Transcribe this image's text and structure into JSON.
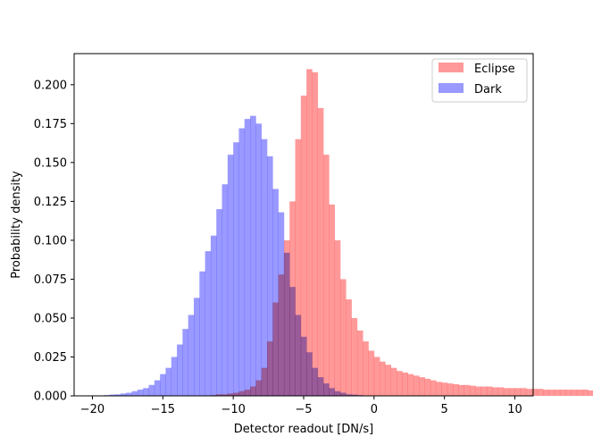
{
  "chart_data": {
    "type": "bar",
    "histogram": true,
    "xlabel": "Detector readout [DN/s]",
    "ylabel": "Probability density",
    "xlim": [
      -21.3,
      11.3
    ],
    "ylim": [
      0,
      0.22
    ],
    "xticks": [
      -20,
      -15,
      -10,
      -5,
      0,
      5,
      10
    ],
    "yticks": [
      0.0,
      0.025,
      0.05,
      0.075,
      0.1,
      0.125,
      0.15,
      0.175,
      0.2
    ],
    "xtick_labels": [
      "−20",
      "−15",
      "−10",
      "−5",
      "0",
      "5",
      "10"
    ],
    "ytick_labels": [
      "0.000",
      "0.025",
      "0.050",
      "0.075",
      "0.100",
      "0.125",
      "0.150",
      "0.175",
      "0.200"
    ],
    "legend_position": "top-right",
    "grid": false,
    "bin_start": -20,
    "bin_width": 0.4,
    "series": [
      {
        "name": "Eclipse",
        "color": "#ff9999",
        "values": [
          0,
          0,
          0,
          0,
          0,
          0,
          0,
          0,
          0,
          0,
          0,
          0,
          0,
          0,
          0,
          0,
          0,
          0,
          0,
          0,
          0,
          0.0005,
          0.001,
          0.001,
          0.0015,
          0.002,
          0.003,
          0.004,
          0.006,
          0.01,
          0.018,
          0.035,
          0.06,
          0.078,
          0.1,
          0.125,
          0.165,
          0.193,
          0.21,
          0.208,
          0.185,
          0.155,
          0.123,
          0.1,
          0.075,
          0.062,
          0.05,
          0.042,
          0.035,
          0.029,
          0.025,
          0.022,
          0.02,
          0.018,
          0.016,
          0.015,
          0.014,
          0.013,
          0.012,
          0.011,
          0.01,
          0.009,
          0.0085,
          0.008,
          0.0075,
          0.007,
          0.007,
          0.0065,
          0.006,
          0.006,
          0.006,
          0.0055,
          0.0055,
          0.005,
          0.005,
          0.005,
          0.005,
          0.0045,
          0.0045,
          0.0045,
          0.004,
          0.004,
          0.004,
          0.004,
          0.004,
          0.004,
          0.004,
          0.004,
          0.0035,
          0.0035,
          0.0035,
          0.0035,
          0.0035,
          0.003,
          0.003,
          0.003,
          0.003,
          0.003,
          0.003,
          0.003
        ]
      },
      {
        "name": "Dark",
        "color": "#9999ff",
        "values": [
          0.0003,
          0.0003,
          0.0005,
          0.0008,
          0.001,
          0.0015,
          0.002,
          0.003,
          0.004,
          0.005,
          0.007,
          0.01,
          0.014,
          0.018,
          0.025,
          0.033,
          0.043,
          0.052,
          0.063,
          0.08,
          0.093,
          0.103,
          0.12,
          0.136,
          0.155,
          0.163,
          0.172,
          0.178,
          0.18,
          0.175,
          0.165,
          0.154,
          0.133,
          0.118,
          0.092,
          0.07,
          0.052,
          0.038,
          0.028,
          0.018,
          0.012,
          0.008,
          0.005,
          0.003,
          0.002,
          0.001,
          0.0008,
          0.0005,
          0.0003,
          0.0002,
          0,
          0,
          0,
          0,
          0,
          0,
          0,
          0,
          0,
          0,
          0,
          0,
          0,
          0,
          0,
          0,
          0,
          0,
          0,
          0,
          0,
          0,
          0,
          0,
          0,
          0,
          0,
          0,
          0,
          0,
          0,
          0,
          0,
          0,
          0,
          0,
          0,
          0,
          0,
          0,
          0,
          0,
          0,
          0,
          0,
          0,
          0,
          0,
          0,
          0
        ]
      }
    ]
  }
}
